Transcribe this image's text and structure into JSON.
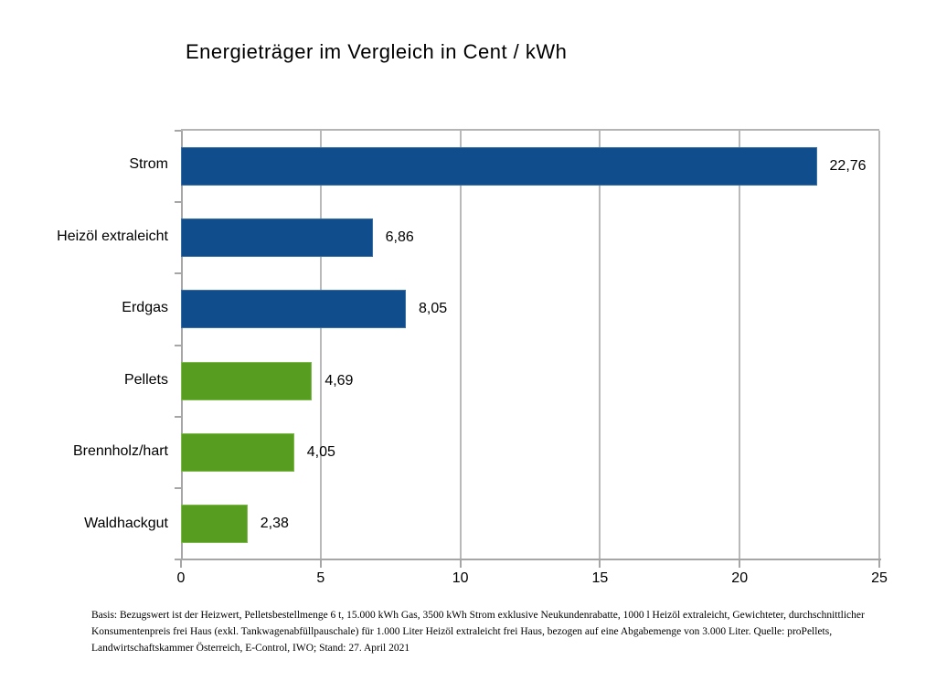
{
  "title": "Energieträger im Vergleich in Cent / kWh",
  "chart_data": {
    "type": "bar",
    "orientation": "horizontal",
    "title": "Energieträger im Vergleich in Cent / kWh",
    "categories": [
      "Strom",
      "Heizöl extraleicht",
      "Erdgas",
      "Pellets",
      "Brennholz/hart",
      "Waldhackgut"
    ],
    "values": [
      22.76,
      6.86,
      8.05,
      4.69,
      4.05,
      2.38
    ],
    "value_labels": [
      "22,76",
      "6,86",
      "8,05",
      "4,69",
      "4,05",
      "2,38"
    ],
    "bar_colors": [
      "#0F4D8C",
      "#0F4D8C",
      "#0F4D8C",
      "#579D20",
      "#579D20",
      "#579D20"
    ],
    "bar_border_colors": [
      "#3A6FA3",
      "#3A6FA3",
      "#3A6FA3",
      "#7CB84C",
      "#7CB84C",
      "#7CB84C"
    ],
    "xlabel": "",
    "ylabel": "",
    "xlim": [
      0,
      25
    ],
    "x_ticks": [
      "0",
      "5",
      "10",
      "15",
      "20",
      "25"
    ],
    "grid": true,
    "legend": false,
    "unit": "Cent / kWh"
  },
  "colors": {
    "blue": "#0F4D8C",
    "green": "#579D20",
    "gridline": "#B9B9B9",
    "axis": "#A6A6A6",
    "background": "#FFFFFF",
    "text": "#000000"
  },
  "footnote": {
    "lines": [
      "Basis: Bezugswert ist der Heizwert, Pelletsbestellmenge 6 t, 15.000 kWh Gas, 3500 kWh Strom exklusive Neukundenrabatte, 1000 l Heizöl extraleicht, Gewichteter, durchschnittlicher",
      "Konsumentenpreis frei Haus (exkl. Tankwagenabfüllpauschale) für 1.000 Liter Heizöl extraleicht frei Haus, bezogen auf eine Abgabemenge von 3.000 Liter. Quelle: proPellets,",
      "Landwirtschaftskammer Österreich, E-Control, IWO; Stand: 27. April 2021"
    ]
  }
}
